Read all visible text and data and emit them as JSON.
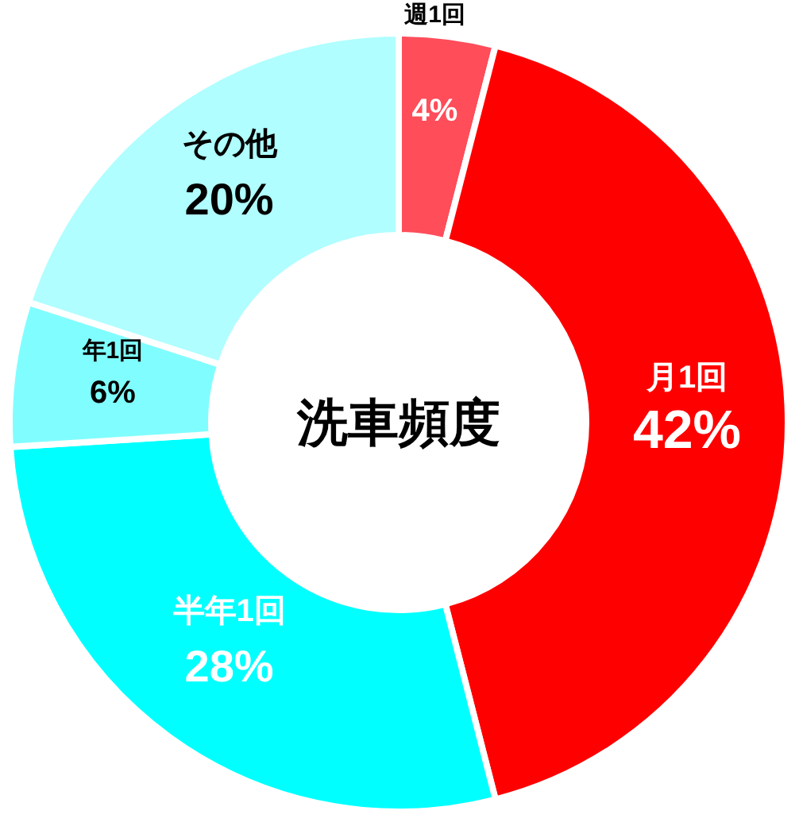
{
  "chart_data": {
    "type": "donut",
    "title": "洗車頻度",
    "categories": [
      "週1回",
      "月1回",
      "半年1回",
      "年1回",
      "その他"
    ],
    "values": [
      4,
      42,
      28,
      6,
      20
    ],
    "colors": [
      "#ff4d5a",
      "#ff0000",
      "#00ffff",
      "#80feff",
      "#b0feff"
    ],
    "value_labels": [
      "4%",
      "42%",
      "28%",
      "6%",
      "20%"
    ],
    "legend": false
  }
}
